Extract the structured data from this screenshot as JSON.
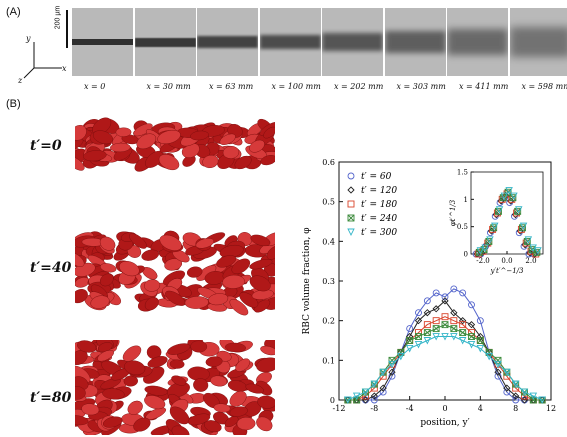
{
  "panel_a": {
    "label": "(A)",
    "scale_bar": "200 µm",
    "axes": {
      "y": "y",
      "z": "z",
      "x": "x"
    },
    "positions": [
      "x = 0",
      "x = 30 mm",
      "x = 63 mm",
      "x = 100 mm",
      "x = 202 mm",
      "x = 303 mm",
      "x = 411 mm",
      "x = 598 mm"
    ]
  },
  "panel_b": {
    "label": "(B)",
    "snapshots": [
      "t′=0",
      "t′=40",
      "t′=80"
    ]
  },
  "colors": {
    "rbc": "#b01818",
    "rbc_light": "#d63a3a",
    "grey_bg": "#bdbdbd",
    "dark_band": "#2f2f2f"
  },
  "chart_data": {
    "type": "scatter",
    "xlabel": "position, y′",
    "ylabel": "RBC volume fraction, φ",
    "xlim": [
      -12,
      12
    ],
    "ylim": [
      0,
      0.6
    ],
    "xticks": [
      -12,
      -8,
      -4,
      0,
      4,
      8,
      12
    ],
    "yticks": [
      0,
      0.1,
      0.2,
      0.3,
      0.4,
      0.5,
      0.6
    ],
    "legend_placement": "top-left",
    "series": [
      {
        "name": "t′ = 60",
        "marker": "circle",
        "color": "#5566cc",
        "x": [
          -11,
          -10,
          -9,
          -8,
          -7,
          -6,
          -5,
          -4,
          -3,
          -2,
          -1,
          0,
          1,
          2,
          3,
          4,
          5,
          6,
          7,
          8,
          9,
          10,
          11
        ],
        "y": [
          0.0,
          0.0,
          0.0,
          0.0,
          0.02,
          0.06,
          0.12,
          0.18,
          0.22,
          0.25,
          0.27,
          0.26,
          0.28,
          0.27,
          0.24,
          0.2,
          0.12,
          0.06,
          0.02,
          0.0,
          0.0,
          0.0,
          0.0
        ]
      },
      {
        "name": "t′ = 120",
        "marker": "diamond",
        "color": "#222222",
        "x": [
          -11,
          -10,
          -9,
          -8,
          -7,
          -6,
          -5,
          -4,
          -3,
          -2,
          -1,
          0,
          1,
          2,
          3,
          4,
          5,
          6,
          7,
          8,
          9,
          10,
          11
        ],
        "y": [
          0.0,
          0.0,
          0.0,
          0.01,
          0.03,
          0.07,
          0.12,
          0.16,
          0.2,
          0.22,
          0.23,
          0.25,
          0.22,
          0.2,
          0.19,
          0.16,
          0.12,
          0.07,
          0.03,
          0.01,
          0.0,
          0.0,
          0.0
        ]
      },
      {
        "name": "t′ = 180",
        "marker": "square",
        "color": "#d9432a",
        "x": [
          -11,
          -10,
          -9,
          -8,
          -7,
          -6,
          -5,
          -4,
          -3,
          -2,
          -1,
          0,
          1,
          2,
          3,
          4,
          5,
          6,
          7,
          8,
          9,
          10,
          11
        ],
        "y": [
          0.0,
          0.0,
          0.01,
          0.03,
          0.06,
          0.09,
          0.12,
          0.15,
          0.17,
          0.19,
          0.2,
          0.21,
          0.2,
          0.19,
          0.17,
          0.15,
          0.12,
          0.09,
          0.06,
          0.03,
          0.01,
          0.0,
          0.0
        ]
      },
      {
        "name": "t′ = 240",
        "marker": "x-square",
        "color": "#3a8a3a",
        "x": [
          -11,
          -10,
          -9,
          -8,
          -7,
          -6,
          -5,
          -4,
          -3,
          -2,
          -1,
          0,
          1,
          2,
          3,
          4,
          5,
          6,
          7,
          8,
          9,
          10,
          11
        ],
        "y": [
          0.0,
          0.0,
          0.02,
          0.04,
          0.07,
          0.1,
          0.12,
          0.15,
          0.16,
          0.17,
          0.18,
          0.19,
          0.18,
          0.17,
          0.16,
          0.15,
          0.12,
          0.1,
          0.07,
          0.04,
          0.02,
          0.0,
          0.0
        ]
      },
      {
        "name": "t′ = 300",
        "marker": "triangle-down",
        "color": "#33b5c8",
        "x": [
          -11,
          -10,
          -9,
          -8,
          -7,
          -6,
          -5,
          -4,
          -3,
          -2,
          -1,
          0,
          1,
          2,
          3,
          4,
          5,
          6,
          7,
          8,
          9,
          10,
          11
        ],
        "y": [
          0.0,
          0.01,
          0.02,
          0.04,
          0.07,
          0.09,
          0.11,
          0.13,
          0.14,
          0.15,
          0.16,
          0.16,
          0.16,
          0.15,
          0.14,
          0.13,
          0.11,
          0.09,
          0.07,
          0.04,
          0.02,
          0.01,
          0.0
        ]
      }
    ],
    "inset": {
      "xlabel": "y′t′^−1/3",
      "ylabel": "φt′^1/3",
      "xlim": [
        -3,
        3
      ],
      "ylim": [
        0,
        1.5
      ],
      "xticks": [
        -2.0,
        0.0,
        2.0
      ],
      "yticks": [
        0,
        0.5,
        1.0,
        1.5
      ],
      "x": [
        -2.4,
        -2.0,
        -1.6,
        -1.2,
        -0.8,
        -0.4,
        0.0,
        0.4,
        0.8,
        1.2,
        1.6,
        2.0,
        2.4
      ],
      "y": [
        0.0,
        0.05,
        0.2,
        0.45,
        0.75,
        1.0,
        1.1,
        1.0,
        0.75,
        0.45,
        0.2,
        0.05,
        0.0
      ]
    }
  }
}
